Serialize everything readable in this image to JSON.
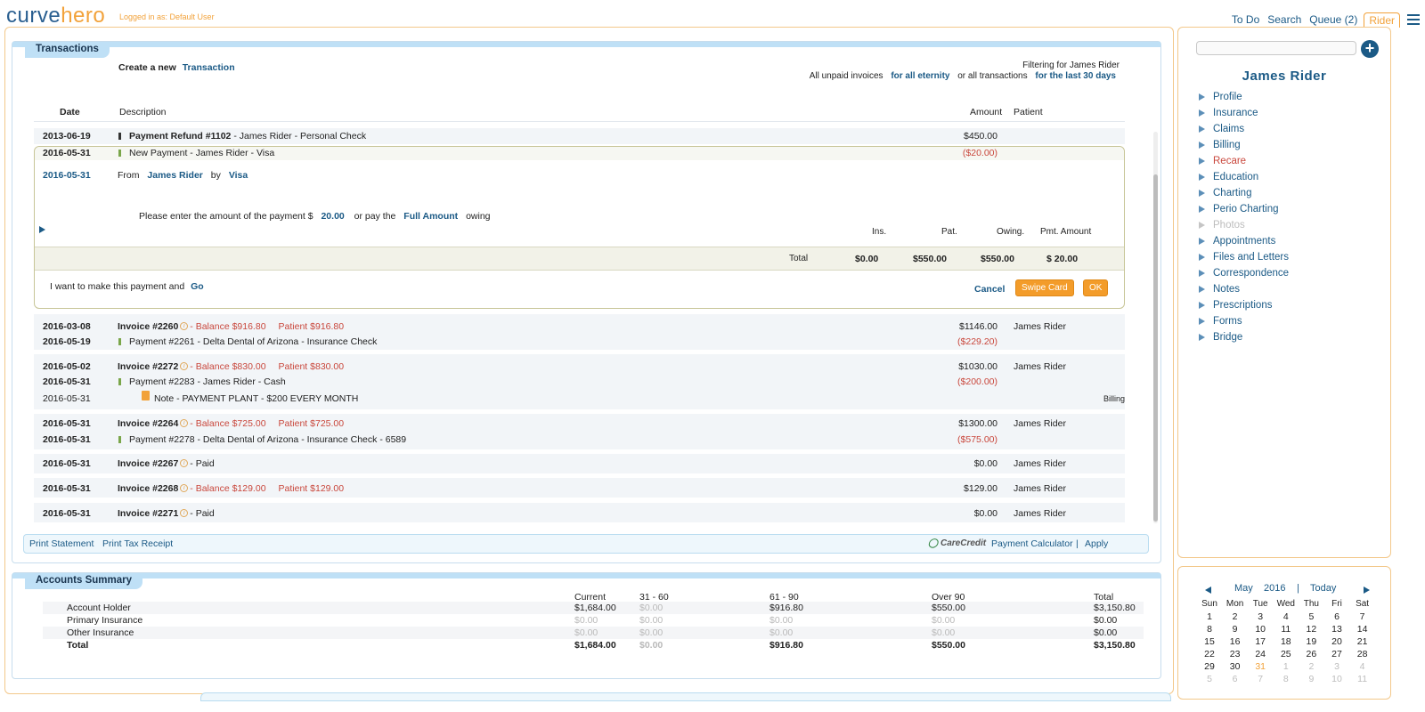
{
  "app": {
    "logo_part1": "curve",
    "logo_part2": "hero",
    "logged_in": "Logged in as: Default User"
  },
  "topnav": {
    "todo": "To Do",
    "search": "Search",
    "queue": "Queue (2)",
    "rider": "Rider"
  },
  "transactions": {
    "title": "Transactions",
    "create_prefix": "Create a new",
    "create_link": "Transaction",
    "filter_title": "Filtering for James Rider",
    "filter_prefix": "All unpaid invoices",
    "filter_link1": "for all eternity",
    "filter_mid": "or all transactions",
    "filter_link2": "for the last 30 days",
    "columns": {
      "date": "Date",
      "description": "Description",
      "amount": "Amount",
      "patient": "Patient"
    },
    "row_refund": {
      "date": "2013-06-19",
      "title": "Payment Refund #1102",
      "rest": "- James Rider - Personal Check",
      "amount": "$450.00"
    },
    "row_newpay": {
      "date": "2016-05-31",
      "desc": "New Payment - James Rider - Visa",
      "amount": "($20.00)"
    },
    "payment_form": {
      "date": "2016-05-31",
      "from_label": "From",
      "from_name": "James Rider",
      "by_label": "by",
      "method": "Visa",
      "enter_prefix": "Please enter the amount of the payment $",
      "amount": "20.00",
      "or_pay": "or pay the",
      "full_amount": "Full Amount",
      "owing": "owing",
      "cols": {
        "ins": "Ins.",
        "pat": "Pat.",
        "owing": "Owing.",
        "pmt": "Pmt. Amount"
      },
      "total_label": "Total",
      "total_ins": "$0.00",
      "total_pat": "$550.00",
      "total_owing": "$550.00",
      "total_pmt": "$ 20.00",
      "confirm_text": "I want to make this payment and",
      "go": "Go",
      "cancel": "Cancel",
      "swipe": "Swipe Card",
      "ok": "OK"
    },
    "rows": [
      {
        "date": "2016-03-08",
        "title": "Invoice #2260",
        "balance": "- Balance $916.80",
        "patient_bal": "Patient $916.80",
        "amount": "$1146.00",
        "patient": "James Rider"
      },
      {
        "date": "2016-05-19",
        "desc": "Payment #2261 - Delta Dental of Arizona - Insurance Check",
        "amount": "($229.20)"
      },
      {
        "date": "2016-05-02",
        "title": "Invoice #2272",
        "balance": "- Balance $830.00",
        "patient_bal": "Patient $830.00",
        "amount": "$1030.00",
        "patient": "James Rider"
      },
      {
        "date": "2016-05-31",
        "desc": "Payment #2283 - James Rider - Cash",
        "amount": "($200.00)"
      },
      {
        "date": "2016-05-31",
        "desc": "Note - PAYMENT PLANT - $200 EVERY MONTH",
        "tag": "Billing"
      },
      {
        "date": "2016-05-31",
        "title": "Invoice #2264",
        "balance": "- Balance $725.00",
        "patient_bal": "Patient $725.00",
        "amount": "$1300.00",
        "patient": "James Rider"
      },
      {
        "date": "2016-05-31",
        "desc": "Payment #2278 - Delta Dental of Arizona - Insurance Check - 6589",
        "amount": "($575.00)"
      },
      {
        "date": "2016-05-31",
        "title": "Invoice #2267",
        "rest": "- Paid",
        "amount": "$0.00",
        "patient": "James Rider"
      },
      {
        "date": "2016-05-31",
        "title": "Invoice #2268",
        "balance": "- Balance $129.00",
        "patient_bal": "Patient $129.00",
        "amount": "$129.00",
        "patient": "James Rider"
      },
      {
        "date": "2016-05-31",
        "title": "Invoice #2271",
        "rest": "- Paid",
        "amount": "$0.00",
        "patient": "James Rider"
      }
    ],
    "footer": {
      "print_statement": "Print Statement",
      "print_tax": "Print Tax Receipt",
      "carecredit": "CareCredit",
      "calculator": "Payment Calculator",
      "sep": "|",
      "apply": "Apply"
    }
  },
  "accounts": {
    "title": "Accounts Summary",
    "headers": [
      "Current",
      "31 - 60",
      "61 - 90",
      "Over 90",
      "Total"
    ],
    "rows": [
      {
        "label": "Account Holder",
        "vals": [
          "$1,684.00",
          "$0.00",
          "$916.80",
          "$550.00",
          "$3,150.80"
        ]
      },
      {
        "label": "Primary Insurance",
        "vals": [
          "$0.00",
          "$0.00",
          "$0.00",
          "$0.00",
          "$0.00"
        ]
      },
      {
        "label": "Other Insurance",
        "vals": [
          "$0.00",
          "$0.00",
          "$0.00",
          "$0.00",
          "$0.00"
        ]
      },
      {
        "label": "Total",
        "vals": [
          "$1,684.00",
          "$0.00",
          "$916.80",
          "$550.00",
          "$3,150.80"
        ]
      }
    ]
  },
  "sidebar": {
    "patient": "James Rider",
    "items": [
      "Profile",
      "Insurance",
      "Claims",
      "Billing",
      "Recare",
      "Education",
      "Charting",
      "Perio Charting",
      "Photos",
      "Appointments",
      "Files and Letters",
      "Correspondence",
      "Notes",
      "Prescriptions",
      "Forms",
      "Bridge"
    ]
  },
  "calendar": {
    "month": "May",
    "year": "2016",
    "sep": "|",
    "today": "Today",
    "weekdays": [
      "Sun",
      "Mon",
      "Tue",
      "Wed",
      "Thu",
      "Fri",
      "Sat"
    ],
    "weeks": [
      [
        "1",
        "2",
        "3",
        "4",
        "5",
        "6",
        "7"
      ],
      [
        "8",
        "9",
        "10",
        "11",
        "12",
        "13",
        "14"
      ],
      [
        "15",
        "16",
        "17",
        "18",
        "19",
        "20",
        "21"
      ],
      [
        "22",
        "23",
        "24",
        "25",
        "26",
        "27",
        "28"
      ],
      [
        "29",
        "30",
        "31",
        "1",
        "2",
        "3",
        "4"
      ],
      [
        "5",
        "6",
        "7",
        "8",
        "9",
        "10",
        "11"
      ]
    ]
  },
  "colors": {
    "accent": "#1b5a86",
    "orange": "#f39c2a",
    "red": "#c9473c",
    "panel_bar": "#bfe0f6"
  }
}
